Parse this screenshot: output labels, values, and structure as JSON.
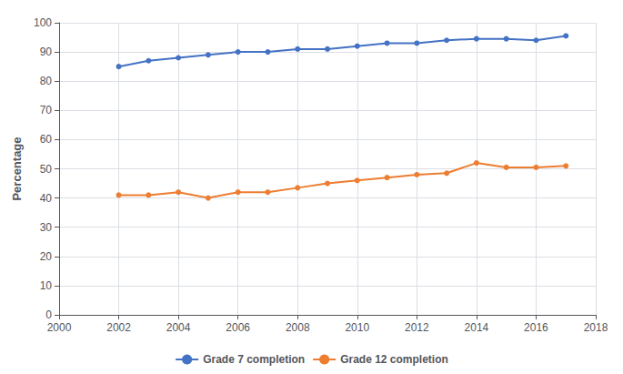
{
  "chart_data": {
    "type": "line",
    "ylabel": "Percentage",
    "x": [
      2002,
      2003,
      2004,
      2005,
      2006,
      2007,
      2008,
      2009,
      2010,
      2011,
      2012,
      2013,
      2014,
      2015,
      2016,
      2017
    ],
    "series": [
      {
        "name": "Grade 7 completion",
        "color": "#4472c4",
        "values": [
          85,
          87,
          88,
          89,
          90,
          90,
          91,
          91,
          92,
          93,
          93,
          94,
          94.5,
          94.5,
          94,
          95.5
        ]
      },
      {
        "name": "Grade 12 completion",
        "color": "#ed7d31",
        "values": [
          41,
          41,
          42,
          40,
          42,
          42,
          43.5,
          45,
          46,
          47,
          48,
          48.5,
          52,
          50.5,
          50.5,
          51
        ]
      }
    ],
    "xlim": [
      2000,
      2018
    ],
    "xticks": [
      2000,
      2002,
      2004,
      2006,
      2008,
      2010,
      2012,
      2014,
      2016,
      2018
    ],
    "ylim": [
      0,
      100
    ],
    "yticks": [
      0,
      10,
      20,
      30,
      40,
      50,
      60,
      70,
      80,
      90,
      100
    ],
    "grid": true,
    "legend": "bottom",
    "marker": "circle"
  }
}
